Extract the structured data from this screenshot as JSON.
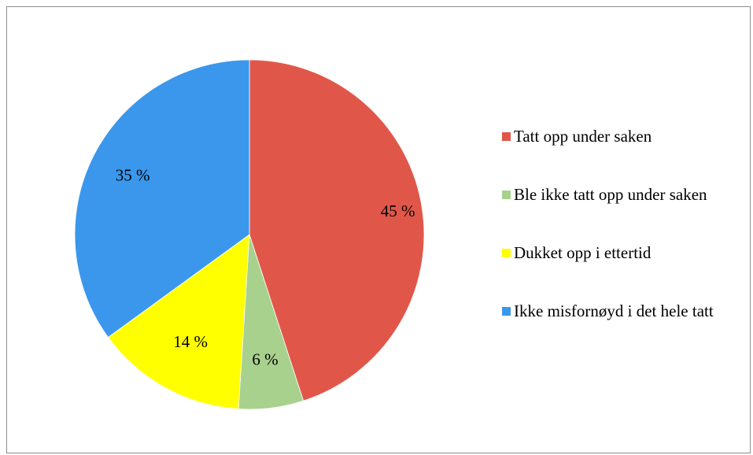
{
  "chart_data": {
    "type": "pie",
    "categories": [
      "Tatt opp under saken",
      "Ble ikke tatt opp under saken",
      "Dukket opp i ettertid",
      "Ikke misfornøyd i det hele tatt"
    ],
    "values": [
      45,
      6,
      14,
      35
    ],
    "labels": [
      "45 %",
      "6 %",
      "14 %",
      "35 %"
    ],
    "colors": [
      "#e0574a",
      "#a9d18e",
      "#ffff00",
      "#3a97ec"
    ],
    "start": "12 o'clock",
    "direction": "clockwise",
    "legend": "right"
  }
}
